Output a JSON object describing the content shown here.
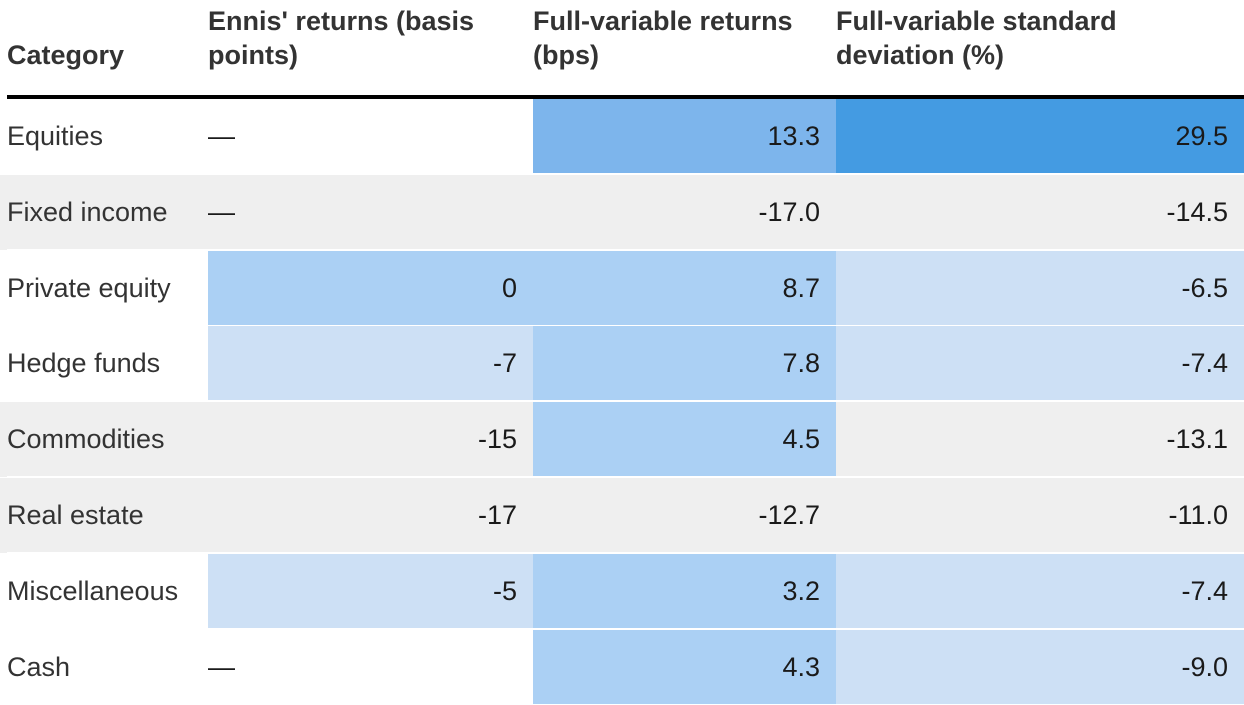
{
  "chart_data": {
    "type": "table",
    "columns": [
      "Category",
      "Ennis' returns (basis points)",
      "Full-variable returns (bps)",
      "Full-variable standard deviation (%)"
    ],
    "rows": [
      {
        "category": "Equities",
        "ennis": "—",
        "fv_returns": "13.3",
        "fv_std": "29.5"
      },
      {
        "category": "Fixed income",
        "ennis": "—",
        "fv_returns": "-17.0",
        "fv_std": "-14.5"
      },
      {
        "category": "Private equity",
        "ennis": "0",
        "fv_returns": "8.7",
        "fv_std": "-6.5"
      },
      {
        "category": "Hedge funds",
        "ennis": "-7",
        "fv_returns": "7.8",
        "fv_std": "-7.4"
      },
      {
        "category": "Commodities",
        "ennis": "-15",
        "fv_returns": "4.5",
        "fv_std": "-13.1"
      },
      {
        "category": "Real estate",
        "ennis": "-17",
        "fv_returns": "-12.7",
        "fv_std": "-11.0"
      },
      {
        "category": "Miscellaneous",
        "ennis": "-5",
        "fv_returns": "3.2",
        "fv_std": "-7.4"
      },
      {
        "category": "Cash",
        "ennis": "—",
        "fv_returns": "4.3",
        "fv_std": "-9.0"
      }
    ]
  },
  "colors": {
    "neutral_row": "#efefef",
    "blank_cell": "#ffffff",
    "header_rule": "#000000",
    "light_blue": "#cde0f5",
    "mid_blue": "#abd0f4",
    "medium_blue": "#7db5ec",
    "strong_blue": "#449be2"
  },
  "cell_colors": [
    [
      "#ffffff",
      "#7db5ec",
      "#449be2"
    ],
    [
      "#efefef",
      "#efefef",
      "#efefef"
    ],
    [
      "#abd0f4",
      "#abd0f4",
      "#cde0f5"
    ],
    [
      "#cde0f5",
      "#abd0f4",
      "#cde0f5"
    ],
    [
      "#efefef",
      "#abd0f4",
      "#efefef"
    ],
    [
      "#efefef",
      "#efefef",
      "#efefef"
    ],
    [
      "#cde0f5",
      "#abd0f4",
      "#cde0f5"
    ],
    [
      "#ffffff",
      "#abd0f4",
      "#cde0f5"
    ]
  ],
  "row_backgrounds": [
    "#ffffff",
    "#efefef",
    "#ffffff",
    "#ffffff",
    "#efefef",
    "#efefef",
    "#ffffff",
    "#ffffff"
  ]
}
